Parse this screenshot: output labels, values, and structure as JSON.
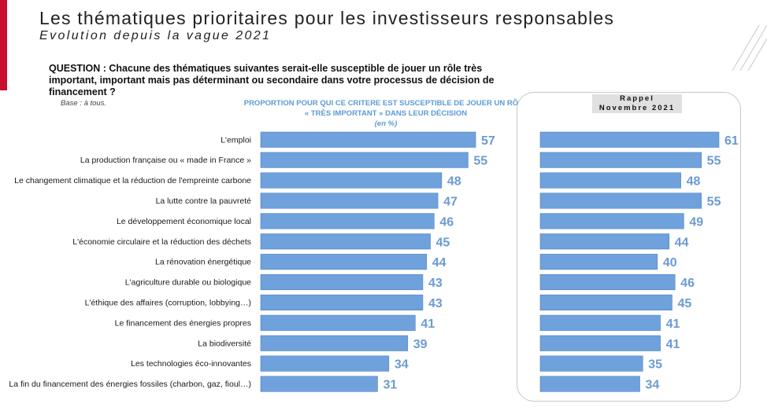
{
  "header": {
    "title": "Les thématiques prioritaires pour les investisseurs responsables",
    "subtitle": "Evolution depuis la vague 2021"
  },
  "question": "QUESTION : Chacune des thématiques suivantes serait-elle susceptible de jouer un rôle très important, important mais pas déterminant ou secondaire dans votre processus de décision de financement ?",
  "base_note": "Base : à tous.",
  "chart_heading": {
    "line1": "PROPORTION POUR QUI CE CRITERE EST SUSCEPTIBLE DE JOUER UN RÔLE",
    "line2": "« TRÈS IMPORTANT » DANS LEUR DÉCISION",
    "unit": "(en %)"
  },
  "rappel": {
    "line1": "Rappel",
    "line2": "Novembre 2021"
  },
  "colors": {
    "bar": "#6fa1dc",
    "bar_border": "#4e84c4",
    "value_label": "#6b9bd1",
    "accent": "#c8102e"
  },
  "chart_data": [
    {
      "type": "bar",
      "orientation": "horizontal",
      "categories": [
        "L'emploi",
        "La production française ou « made in France »",
        "Le changement climatique et la réduction de l'empreinte carbone",
        "La lutte contre la pauvreté",
        "Le développement économique local",
        "L'économie circulaire et la réduction des déchets",
        "La rénovation énergétique",
        "L'agriculture durable ou biologique",
        "L'éthique des affaires (corruption, lobbying…)",
        "Le financement des énergies propres",
        "La biodiversité",
        "Les technologies éco-innovantes",
        "La fin du financement des énergies fossiles (charbon, gaz, fioul…)"
      ],
      "values": [
        57,
        55,
        48,
        47,
        46,
        45,
        44,
        43,
        43,
        41,
        39,
        34,
        31
      ],
      "data_labels": true,
      "xlim": [
        0,
        57
      ],
      "grid": false
    },
    {
      "type": "bar",
      "orientation": "horizontal",
      "values": [
        61,
        55,
        48,
        55,
        49,
        44,
        40,
        46,
        45,
        41,
        41,
        35,
        34
      ],
      "data_labels": true,
      "xlim": [
        0,
        61
      ],
      "grid": false
    }
  ]
}
